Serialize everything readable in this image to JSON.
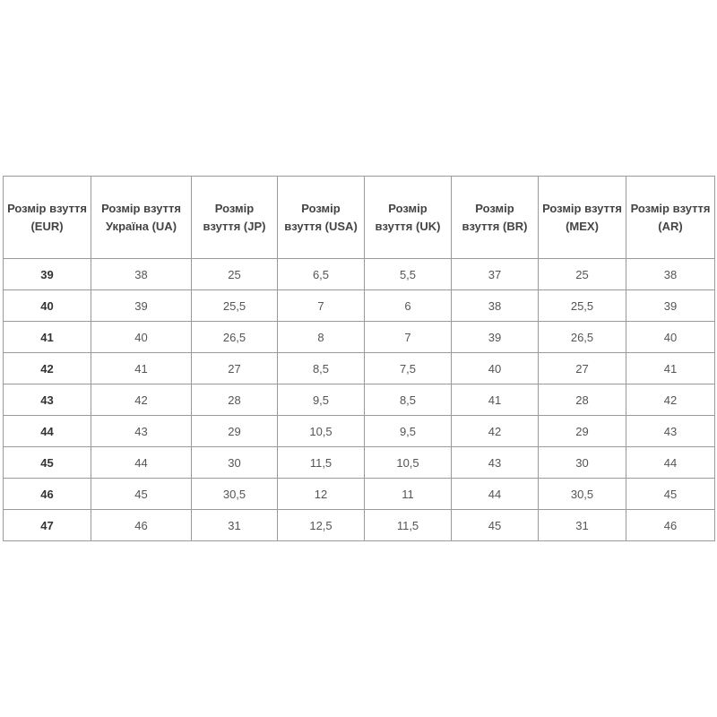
{
  "table": {
    "headers": [
      "Розмір взуття (EUR)",
      "Розмір взуття Україна (UA)",
      "Розмір взуття (JP)",
      "Розмір взуття (USA)",
      "Розмір взуття (UK)",
      "Розмір взуття (BR)",
      "Розмір взуття (MEX)",
      "Розмір взуття (AR)"
    ],
    "rows": [
      [
        "39",
        "38",
        "25",
        "6,5",
        "5,5",
        "37",
        "25",
        "38"
      ],
      [
        "40",
        "39",
        "25,5",
        "7",
        "6",
        "38",
        "25,5",
        "39"
      ],
      [
        "41",
        "40",
        "26,5",
        "8",
        "7",
        "39",
        "26,5",
        "40"
      ],
      [
        "42",
        "41",
        "27",
        "8,5",
        "7,5",
        "40",
        "27",
        "41"
      ],
      [
        "43",
        "42",
        "28",
        "9,5",
        "8,5",
        "41",
        "28",
        "42"
      ],
      [
        "44",
        "43",
        "29",
        "10,5",
        "9,5",
        "42",
        "29",
        "43"
      ],
      [
        "45",
        "44",
        "30",
        "11,5",
        "10,5",
        "43",
        "30",
        "44"
      ],
      [
        "46",
        "45",
        "30,5",
        "12",
        "11",
        "44",
        "30,5",
        "45"
      ],
      [
        "47",
        "46",
        "31",
        "12,5",
        "11,5",
        "45",
        "31",
        "46"
      ]
    ]
  }
}
